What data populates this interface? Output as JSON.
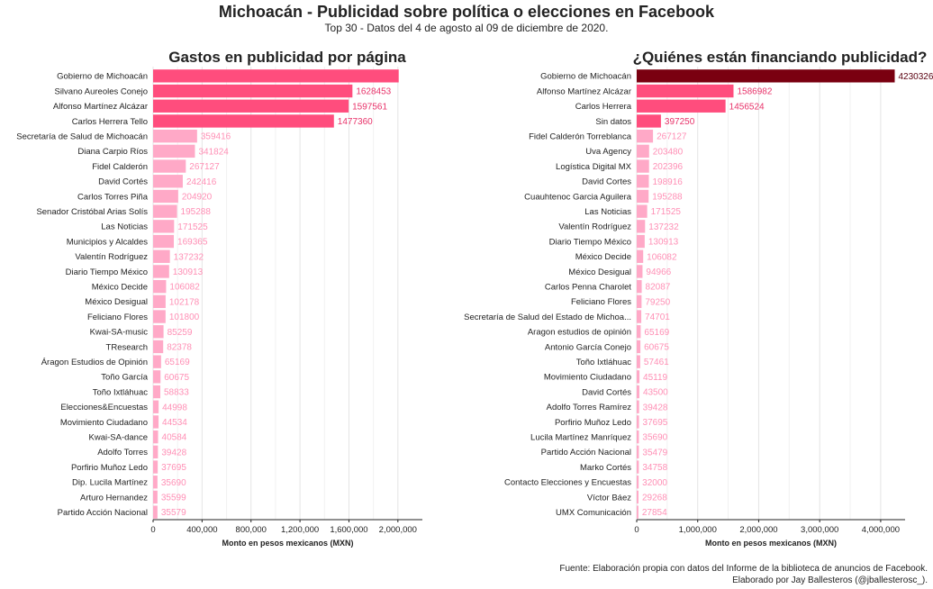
{
  "title": "Michoacán - Publicidad sobre política o elecciones en Facebook",
  "subtitle": "Top 30 - Datos del 4 de agosto al 09 de diciembre de 2020.",
  "caption": {
    "line1": "Fuente: Elaboración propia con datos del Informe de la biblioteca de anuncios de Facebook.",
    "line2": "Elaborado por Jay Ballesteros (@jballesterosc_)."
  },
  "chart_data": [
    {
      "type": "bar",
      "orientation": "horizontal",
      "title": "Gastos en publicidad por página",
      "xlabel": "Monto en pesos mexicanos (MXN)",
      "ylabel": "",
      "xlim": [
        0,
        2200000
      ],
      "xticks": [
        0,
        400000,
        800000,
        1200000,
        1600000,
        2000000
      ],
      "xtick_labels": [
        "0",
        "400,000",
        "800,000",
        "1,200,000",
        "1,600,000",
        "2,000,000"
      ],
      "grid": true,
      "colors": {
        "top1": "#ff4d7d",
        "top4": "#ff4d7d",
        "rest": "#ffa9c7",
        "top1_label": "#ffffff",
        "top4_label": "#e8336a",
        "rest_label": "#ff8fb5"
      },
      "categories": [
        "Gobierno de Michoacán",
        "Silvano Aureoles Conejo",
        "Alfonso Martínez Alcázar",
        "Carlos Herrera Tello",
        "Secretaría de Salud de Michoacán",
        "Diana Carpio Ríos",
        "Fidel Calderón",
        "David Cortés",
        "Carlos Torres Piña",
        "Senador Cristóbal Arias Solís",
        "Las Noticias",
        "Municipios y Alcaldes",
        "Valentín Rodríguez",
        "Diario Tiempo México",
        "México Decide",
        "México Desigual",
        "Feliciano Flores",
        "Kwai-SA-music",
        "TResearch",
        "Áragon Estudios de Opinión",
        "Toño García",
        "Toño Ixtláhuac",
        "Elecciones&Encuestas",
        "Movimiento Ciudadano",
        "Kwai-SA-dance",
        "Adolfo Torres",
        "Porfirio Muñoz Ledo",
        "Dip. Lucila Martínez",
        "Arturo Hernandez",
        "Partido Acción Nacional"
      ],
      "values": [
        2006650,
        1628453,
        1597561,
        1477360,
        359416,
        341824,
        267127,
        242416,
        204920,
        195288,
        171525,
        169365,
        137232,
        130913,
        106082,
        102178,
        101800,
        85259,
        82378,
        65169,
        60675,
        58833,
        44998,
        44534,
        40584,
        39428,
        37695,
        35690,
        35599,
        35579
      ]
    },
    {
      "type": "bar",
      "orientation": "horizontal",
      "title": "¿Quiénes están financiando publicidad?",
      "xlabel": "Monto en pesos mexicanos (MXN)",
      "ylabel": "",
      "xlim": [
        0,
        4400000
      ],
      "xticks": [
        0,
        1000000,
        2000000,
        3000000,
        4000000
      ],
      "xtick_labels": [
        "0",
        "1,000,000",
        "2,000,000",
        "3,000,000",
        "4,000,000"
      ],
      "grid": true,
      "colors": {
        "top1": "#7a0010",
        "top4": "#ff4d7d",
        "rest": "#ffa9c7",
        "top1_label": "#5a0010",
        "top4_label": "#e8336a",
        "rest_label": "#ff8fb5"
      },
      "categories": [
        "Gobierno de Michoacán",
        "Alfonso Martínez Alcázar",
        "Carlos Herrera",
        "Sin datos",
        "Fidel Calderón Torreblanca",
        "Uva Agency",
        "Logística Digital MX",
        "David Cortes",
        "Cuauhtenoc Garcia Aguilera",
        "Las Noticias",
        "Valentín Rodríguez",
        "Diario Tiempo México",
        "México Decide",
        "México Desigual",
        "Carlos Penna Charolet",
        "Feliciano Flores",
        "Secretaría de Salud del Estado de Michoa...",
        "Aragon estudios de opinión",
        "Antonio García Conejo",
        "Toño Ixtláhuac",
        "Movimiento Ciudadano",
        "David Cortés",
        "Adolfo Torres Ramírez",
        "Porfirio Muñoz Ledo",
        "Lucila Martínez Manríquez",
        "Partido Acción Nacional",
        "Marko Cortés",
        "Contacto Elecciones y Encuestas",
        "Víctor Báez",
        "UMX Comunicación"
      ],
      "values": [
        4230326,
        1586982,
        1456524,
        397250,
        267127,
        203480,
        202396,
        198916,
        195288,
        171525,
        137232,
        130913,
        106082,
        94966,
        82087,
        79250,
        74701,
        65169,
        60675,
        57461,
        45119,
        43500,
        39428,
        37695,
        35690,
        35479,
        34758,
        32000,
        29268,
        27854
      ]
    }
  ]
}
